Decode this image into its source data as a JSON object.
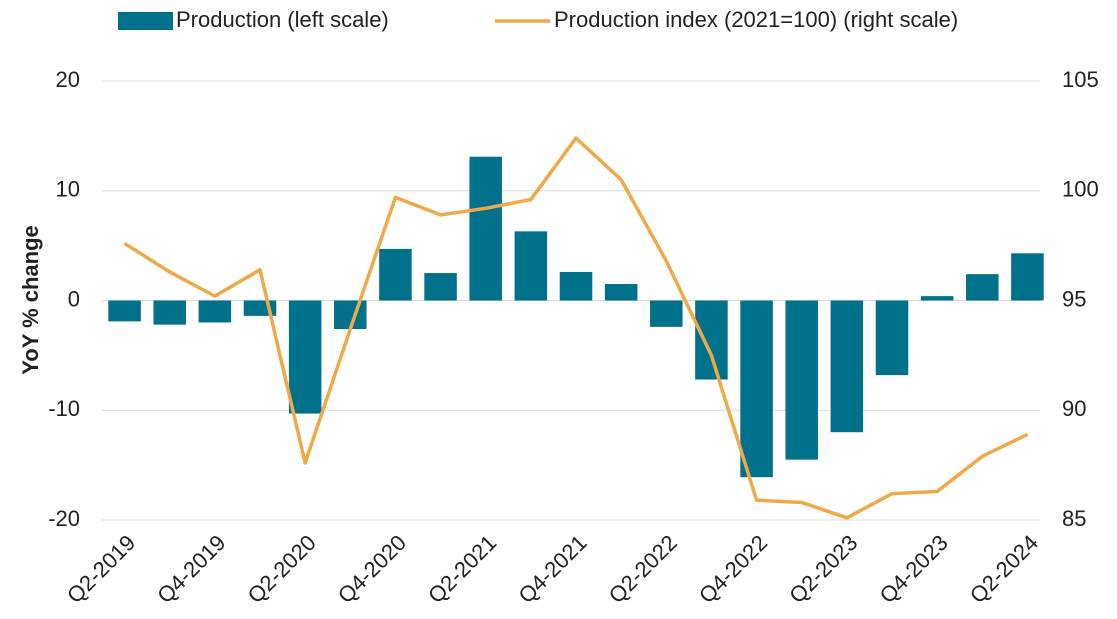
{
  "chart_data": {
    "type": "bar",
    "y_label": "YoY % change",
    "categories": [
      "Q2-2019",
      null,
      "Q4-2019",
      null,
      "Q2-2020",
      null,
      "Q4-2020",
      null,
      "Q2-2021",
      null,
      "Q4-2021",
      null,
      "Q2-2022",
      null,
      "Q4-2022",
      null,
      "Q2-2023",
      null,
      "Q4-2023",
      null,
      "Q2-2024"
    ],
    "series": [
      {
        "name": "Production (left scale)",
        "type": "bar",
        "color": "#00718a",
        "values": [
          -1.9,
          -2.2,
          -2.0,
          -1.4,
          -10.3,
          -2.6,
          4.7,
          2.5,
          13.1,
          6.3,
          2.6,
          1.5,
          -2.4,
          -7.2,
          -16.1,
          -14.5,
          -12.0,
          -6.8,
          0.4,
          2.4,
          4.3
        ]
      },
      {
        "name": "Production index (2021=100) (right scale)",
        "type": "line",
        "axis": "y2",
        "color": "#f0a848",
        "values": [
          97.6,
          96.3,
          95.2,
          96.4,
          87.6,
          93.7,
          99.7,
          98.9,
          99.2,
          99.6,
          102.4,
          100.5,
          96.8,
          92.5,
          85.9,
          85.8,
          85.1,
          86.2,
          86.3,
          87.9,
          88.9
        ]
      }
    ],
    "ylim": [
      -20,
      20
    ],
    "yticks": [
      -20,
      -10,
      0,
      10,
      20
    ],
    "y2lim": [
      85,
      105
    ],
    "y2ticks": [
      85,
      90,
      95,
      100,
      105
    ],
    "grid": true,
    "legend": "top"
  }
}
